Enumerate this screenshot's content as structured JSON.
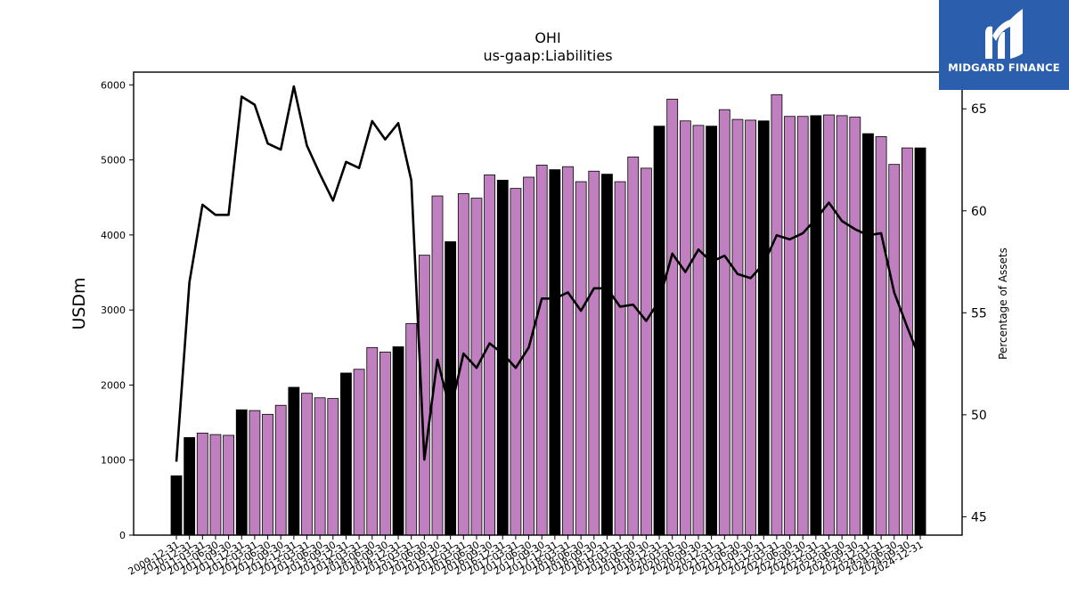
{
  "logo": {
    "text": "MIDGARD FINANCE"
  },
  "chart_data": {
    "type": "bar",
    "title": "OHI",
    "subtitle": "us-gaap:Liabilities",
    "ylabel": "USDm",
    "y2label": "Percentage of Assets",
    "ylim": [
      0,
      6170
    ],
    "y2lim": [
      44.1,
      66.8
    ],
    "yticks": [
      "0",
      "1000",
      "2000",
      "3000",
      "4000",
      "5000",
      "6000"
    ],
    "y2ticks": [
      "45",
      "50",
      "55",
      "60",
      "65"
    ],
    "xtick_labels": [
      "2009-12-31",
      "2010-12-31",
      "2011-03-31",
      "2011-06-30",
      "2011-09-30",
      "2011-12-31",
      "2012-03-31",
      "2012-06-30",
      "2012-09-30",
      "2012-12-31",
      "2013-03-31",
      "2013-06-30",
      "2013-09-30",
      "2013-12-31",
      "2014-03-31",
      "2014-06-30",
      "2014-09-30",
      "2014-12-31",
      "2015-03-31",
      "2015-06-30",
      "2015-09-30",
      "2015-12-31",
      "2016-03-31",
      "2016-06-30",
      "2016-09-30",
      "2016-12-31",
      "2017-03-31",
      "2017-06-30",
      "2017-09-30",
      "2017-12-31",
      "2018-03-31",
      "2018-06-30",
      "2018-09-30",
      "2018-12-31",
      "2019-03-31",
      "2019-06-30",
      "2019-09-30",
      "2019-12-31",
      "2020-03-31",
      "2020-06-30",
      "2020-09-30",
      "2020-12-31",
      "2021-03-31",
      "2021-06-30",
      "2021-09-30",
      "2021-12-31",
      "2022-03-31",
      "2022-06-30",
      "2022-09-30",
      "2022-12-31",
      "2023-03-31",
      "2023-06-30",
      "2023-09-30",
      "2023-12-31",
      "2024-03-31",
      "2024-06-30",
      "2024-09-30",
      "2024-12-31"
    ],
    "series": [
      {
        "kind": "bar",
        "axis": "left",
        "values": [
          790,
          1300,
          1360,
          1340,
          1330,
          1670,
          1660,
          1610,
          1730,
          1970,
          1890,
          1830,
          1820,
          2160,
          2210,
          2500,
          2440,
          2510,
          2820,
          3730,
          4520,
          3910,
          4550,
          4490,
          4800,
          4730,
          4620,
          4770,
          4930,
          4870,
          4910,
          4710,
          4850,
          4810,
          4710,
          5040,
          4890,
          5450,
          5810,
          5520,
          5460,
          5450,
          5670,
          5540,
          5530,
          5520,
          5870,
          5580,
          5580,
          5590,
          5600,
          5590,
          5570,
          5350,
          5310,
          4940,
          5160,
          5160
        ],
        "year_end": [
          true,
          true,
          false,
          false,
          false,
          true,
          false,
          false,
          false,
          true,
          false,
          false,
          false,
          true,
          false,
          false,
          false,
          true,
          false,
          false,
          false,
          true,
          false,
          false,
          false,
          true,
          false,
          false,
          false,
          true,
          false,
          false,
          false,
          true,
          false,
          false,
          false,
          true,
          false,
          false,
          false,
          true,
          false,
          false,
          false,
          true,
          false,
          false,
          false,
          true,
          false,
          false,
          false,
          true,
          false,
          false,
          false,
          true
        ],
        "colors": {
          "year_end": "#000000",
          "quarter": "#c080c0"
        }
      },
      {
        "kind": "line",
        "axis": "right",
        "values": [
          47.7,
          56.5,
          60.3,
          59.8,
          59.8,
          65.6,
          65.2,
          63.3,
          63.0,
          66.1,
          63.2,
          61.8,
          60.5,
          62.4,
          62.1,
          64.4,
          63.5,
          64.3,
          61.5,
          47.8,
          52.7,
          50.2,
          53.0,
          52.3,
          53.5,
          53.0,
          52.3,
          53.3,
          55.7,
          55.7,
          56.0,
          55.1,
          56.2,
          56.2,
          55.3,
          55.4,
          54.6,
          55.6,
          57.9,
          57.0,
          58.1,
          57.5,
          57.8,
          56.9,
          56.7,
          57.4,
          58.8,
          58.6,
          58.9,
          59.6,
          60.4,
          59.5,
          59.1,
          58.8,
          58.9,
          56.0,
          54.3,
          52.7
        ],
        "color": "#000000"
      }
    ]
  }
}
